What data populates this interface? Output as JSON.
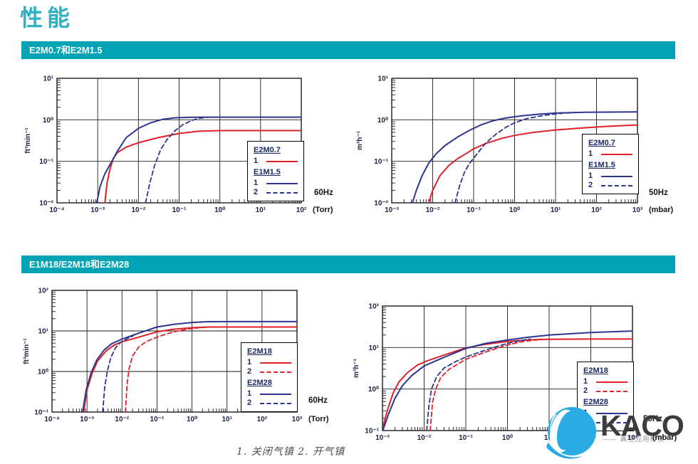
{
  "page": {
    "title": "性能",
    "title_color": "#31b0c3",
    "background": "#ffffff"
  },
  "sections": [
    {
      "banner": "E2M0.7和E2M1.5",
      "banner_bg": "#00a4b4"
    },
    {
      "banner": "E1M18/E2M18和E2M28",
      "banner_bg": "#00a4b4"
    }
  ],
  "footer": {
    "caption": "1. 关闭气镇    2. 开气镇"
  },
  "logo": {
    "text": "KACO",
    "tagline": "—— 真空应用科技",
    "icon": "kaco-sphere-icon",
    "icon_color": "#2aabe3",
    "text_color": "#3c3c3e"
  },
  "colors": {
    "red": "#e02128",
    "blue": "#2c3590",
    "grid": "#1a1a1a",
    "tick_text": "#1b2142"
  },
  "chart_data": [
    {
      "id": "c1",
      "type": "line",
      "section": 0,
      "freq": "60Hz",
      "x_unit": "(Torr)",
      "ylabel": "ft³min⁻¹",
      "xlog": [
        -4,
        2
      ],
      "ylog": [
        -2,
        1
      ],
      "xticks": [
        "10⁻⁴",
        "10⁻³",
        "10⁻²",
        "10⁻¹",
        "10⁰",
        "10¹",
        "10²"
      ],
      "yticks": [
        "10¹",
        "10⁰",
        "10⁻¹",
        "10⁻²"
      ],
      "legend": [
        {
          "title": "E2M0.7",
          "entries": [
            {
              "label": "1",
              "color": "red",
              "dash": false
            }
          ]
        },
        {
          "title": "E1M1.5",
          "entries": [
            {
              "label": "1",
              "color": "blue",
              "dash": false
            },
            {
              "label": "2",
              "color": "blue",
              "dash": true
            }
          ]
        }
      ],
      "series": [
        {
          "name": "E2M0.7 (1)",
          "color": "red",
          "dash": false,
          "points": [
            [
              0.0015,
              0.01
            ],
            [
              0.0017,
              0.03
            ],
            [
              0.002,
              0.065
            ],
            [
              0.0024,
              0.115
            ],
            [
              0.003,
              0.16
            ],
            [
              0.005,
              0.22
            ],
            [
              0.01,
              0.28
            ],
            [
              0.03,
              0.37
            ],
            [
              0.1,
              0.47
            ],
            [
              0.3,
              0.53
            ],
            [
              1,
              0.55
            ],
            [
              100,
              0.55
            ]
          ]
        },
        {
          "name": "E1M1.5 (1)",
          "color": "blue",
          "dash": false,
          "points": [
            [
              0.00095,
              0.01
            ],
            [
              0.00115,
              0.025
            ],
            [
              0.0015,
              0.05
            ],
            [
              0.0023,
              0.105
            ],
            [
              0.003,
              0.17
            ],
            [
              0.005,
              0.37
            ],
            [
              0.01,
              0.62
            ],
            [
              0.02,
              0.85
            ],
            [
              0.04,
              1.03
            ],
            [
              0.08,
              1.12
            ],
            [
              0.2,
              1.15
            ],
            [
              1,
              1.16
            ],
            [
              100,
              1.16
            ]
          ]
        },
        {
          "name": "E1M1.5 (2)",
          "color": "blue",
          "dash": true,
          "points": [
            [
              0.015,
              0.01
            ],
            [
              0.019,
              0.03
            ],
            [
              0.025,
              0.08
            ],
            [
              0.035,
              0.19
            ],
            [
              0.05,
              0.33
            ],
            [
              0.08,
              0.55
            ],
            [
              0.12,
              0.75
            ],
            [
              0.2,
              0.96
            ],
            [
              0.3,
              1.08
            ],
            [
              0.45,
              1.14
            ],
            [
              0.6,
              1.16
            ]
          ]
        }
      ]
    },
    {
      "id": "c2",
      "type": "line",
      "section": 0,
      "freq": "50Hz",
      "x_unit": "(mbar)",
      "ylabel": "m³h⁻¹",
      "xlog": [
        -3,
        3
      ],
      "ylog": [
        -2,
        1
      ],
      "xticks": [
        "10⁻³",
        "10⁻²",
        "10⁻¹",
        "10⁰",
        "10¹",
        "10²",
        "10³"
      ],
      "yticks": [
        "10¹",
        "10⁰",
        "10⁻¹",
        "10⁻²"
      ],
      "legend": [
        {
          "title": "E2M0.7",
          "entries": [
            {
              "label": "1",
              "color": "red",
              "dash": false
            }
          ]
        },
        {
          "title": "E1M1.5",
          "entries": [
            {
              "label": "1",
              "color": "blue",
              "dash": false
            },
            {
              "label": "2",
              "color": "blue",
              "dash": true
            }
          ]
        }
      ],
      "series": [
        {
          "name": "E2M0.7 (1)",
          "color": "red",
          "dash": false,
          "points": [
            [
              0.008,
              0.01
            ],
            [
              0.01,
              0.02
            ],
            [
              0.015,
              0.045
            ],
            [
              0.025,
              0.08
            ],
            [
              0.04,
              0.115
            ],
            [
              0.07,
              0.16
            ],
            [
              0.1,
              0.2
            ],
            [
              0.2,
              0.27
            ],
            [
              0.5,
              0.36
            ],
            [
              1,
              0.42
            ],
            [
              3,
              0.5
            ],
            [
              10,
              0.57
            ],
            [
              50,
              0.64
            ],
            [
              200,
              0.7
            ],
            [
              1000,
              0.75
            ]
          ]
        },
        {
          "name": "E1M1.5 (1)",
          "color": "blue",
          "dash": false,
          "points": [
            [
              0.0032,
              0.01
            ],
            [
              0.004,
              0.02
            ],
            [
              0.0055,
              0.045
            ],
            [
              0.008,
              0.09
            ],
            [
              0.012,
              0.15
            ],
            [
              0.02,
              0.24
            ],
            [
              0.04,
              0.38
            ],
            [
              0.08,
              0.56
            ],
            [
              0.15,
              0.75
            ],
            [
              0.3,
              0.95
            ],
            [
              0.6,
              1.1
            ],
            [
              1.5,
              1.25
            ],
            [
              4,
              1.37
            ],
            [
              10,
              1.45
            ],
            [
              50,
              1.52
            ],
            [
              1000,
              1.55
            ]
          ]
        },
        {
          "name": "E1M1.5 (2)",
          "color": "blue",
          "dash": true,
          "points": [
            [
              0.035,
              0.01
            ],
            [
              0.045,
              0.025
            ],
            [
              0.06,
              0.055
            ],
            [
              0.08,
              0.09
            ],
            [
              0.12,
              0.15
            ],
            [
              0.2,
              0.28
            ],
            [
              0.35,
              0.45
            ],
            [
              0.6,
              0.65
            ],
            [
              1,
              0.85
            ],
            [
              2,
              1.07
            ],
            [
              4,
              1.22
            ],
            [
              8,
              1.35
            ],
            [
              15,
              1.44
            ],
            [
              30,
              1.5
            ]
          ]
        }
      ]
    },
    {
      "id": "c3",
      "type": "line",
      "section": 1,
      "freq": "60Hz",
      "x_unit": "(Torr)",
      "ylabel": "ft³min⁻¹",
      "xlog": [
        -4,
        3
      ],
      "ylog": [
        -1,
        2
      ],
      "xticks": [
        "10⁻⁴",
        "10⁻³",
        "10⁻²",
        "10⁻¹",
        "10⁰",
        "10¹",
        "10²",
        "10³"
      ],
      "yticks": [
        "10²",
        "10¹",
        "10⁰",
        "10⁻¹"
      ],
      "legend": [
        {
          "title": "E2M18",
          "entries": [
            {
              "label": "1",
              "color": "red",
              "dash": false
            },
            {
              "label": "2",
              "color": "red",
              "dash": true
            }
          ]
        },
        {
          "title": "E2M28",
          "entries": [
            {
              "label": "1",
              "color": "blue",
              "dash": false
            },
            {
              "label": "2",
              "color": "blue",
              "dash": true
            }
          ]
        }
      ],
      "series": [
        {
          "name": "E2M18 (1)",
          "color": "red",
          "dash": false,
          "points": [
            [
              0.0008,
              0.1
            ],
            [
              0.001,
              0.35
            ],
            [
              0.0014,
              0.9
            ],
            [
              0.002,
              1.8
            ],
            [
              0.0035,
              3.2
            ],
            [
              0.006,
              4.5
            ],
            [
              0.01,
              5.4
            ],
            [
              0.03,
              7
            ],
            [
              0.1,
              9.5
            ],
            [
              0.3,
              11
            ],
            [
              1,
              12
            ],
            [
              3,
              12.5
            ],
            [
              1000,
              12.5
            ]
          ]
        },
        {
          "name": "E2M18 (2)",
          "color": "red",
          "dash": true,
          "points": [
            [
              0.0125,
              0.1
            ],
            [
              0.014,
              0.5
            ],
            [
              0.016,
              1.2
            ],
            [
              0.02,
              2.4
            ],
            [
              0.03,
              4
            ],
            [
              0.05,
              5.5
            ],
            [
              0.1,
              7
            ],
            [
              0.2,
              8.6
            ],
            [
              0.4,
              10
            ],
            [
              0.8,
              11.2
            ],
            [
              1.5,
              11.9
            ],
            [
              2.5,
              12.3
            ]
          ]
        },
        {
          "name": "E2M28 (1)",
          "color": "blue",
          "dash": false,
          "points": [
            [
              0.00075,
              0.1
            ],
            [
              0.00095,
              0.35
            ],
            [
              0.0013,
              0.9
            ],
            [
              0.0019,
              1.9
            ],
            [
              0.003,
              3.3
            ],
            [
              0.005,
              4.8
            ],
            [
              0.01,
              6.3
            ],
            [
              0.03,
              8.8
            ],
            [
              0.1,
              12.5
            ],
            [
              0.3,
              14.5
            ],
            [
              1,
              16.2
            ],
            [
              3,
              16.9
            ],
            [
              10,
              17
            ],
            [
              1000,
              17
            ]
          ]
        },
        {
          "name": "E2M28 (2)",
          "color": "blue",
          "dash": true,
          "points": [
            [
              0.0028,
              0.1
            ],
            [
              0.0032,
              0.4
            ],
            [
              0.0038,
              1.0
            ],
            [
              0.0048,
              2.2
            ],
            [
              0.0065,
              3.8
            ],
            [
              0.009,
              5.2
            ],
            [
              0.014,
              6.4
            ],
            [
              0.022,
              7.8
            ]
          ]
        }
      ]
    },
    {
      "id": "c4",
      "type": "line",
      "section": 1,
      "freq": "50Hz",
      "x_unit": "(mbar)",
      "ylabel": "m³h⁻¹",
      "xlog": [
        -3,
        3
      ],
      "ylog": [
        -1,
        2
      ],
      "xticks": [
        "10⁻³",
        "10⁻²",
        "10⁻¹",
        "10⁰",
        "10¹",
        "10²",
        "10³"
      ],
      "yticks": [
        "10²",
        "10¹",
        "10⁰",
        "10⁻¹"
      ],
      "legend": [
        {
          "title": "E2M18",
          "entries": [
            {
              "label": "1",
              "color": "red",
              "dash": false
            },
            {
              "label": "2",
              "color": "red",
              "dash": true
            }
          ]
        },
        {
          "title": "E2M28",
          "entries": [
            {
              "label": "1",
              "color": "blue",
              "dash": false
            },
            {
              "label": "2",
              "color": "blue",
              "dash": true
            }
          ]
        }
      ],
      "series": [
        {
          "name": "E2M18 (1)",
          "color": "red",
          "dash": false,
          "points": [
            [
              0.001,
              0.11
            ],
            [
              0.0013,
              0.3
            ],
            [
              0.0018,
              0.8
            ],
            [
              0.0025,
              1.5
            ],
            [
              0.004,
              2.5
            ],
            [
              0.007,
              3.8
            ],
            [
              0.012,
              4.8
            ],
            [
              0.03,
              6.6
            ],
            [
              0.1,
              9.8
            ],
            [
              0.3,
              12
            ],
            [
              1,
              14
            ],
            [
              3,
              15.3
            ],
            [
              10,
              15.8
            ],
            [
              100,
              16
            ],
            [
              1000,
              16
            ]
          ]
        },
        {
          "name": "E2M18 (2)",
          "color": "red",
          "dash": true,
          "points": [
            [
              0.014,
              0.1
            ],
            [
              0.016,
              0.5
            ],
            [
              0.019,
              1.0
            ],
            [
              0.025,
              1.9
            ],
            [
              0.04,
              3.0
            ],
            [
              0.07,
              4.2
            ],
            [
              0.1,
              5.2
            ],
            [
              0.3,
              7.8
            ],
            [
              0.6,
              9.8
            ],
            [
              1,
              11.5
            ],
            [
              2,
              13.5
            ],
            [
              4,
              15
            ],
            [
              7,
              15.6
            ]
          ]
        },
        {
          "name": "E2M28 (1)",
          "color": "blue",
          "dash": false,
          "points": [
            [
              0.001,
              0.095
            ],
            [
              0.0014,
              0.25
            ],
            [
              0.002,
              0.6
            ],
            [
              0.003,
              1.2
            ],
            [
              0.005,
              2.1
            ],
            [
              0.01,
              3.6
            ],
            [
              0.03,
              5.8
            ],
            [
              0.1,
              9.5
            ],
            [
              0.3,
              12.6
            ],
            [
              1,
              15.2
            ],
            [
              3,
              17.6
            ],
            [
              10,
              20
            ],
            [
              100,
              23
            ],
            [
              1000,
              25
            ]
          ]
        },
        {
          "name": "E2M28 (2)",
          "color": "blue",
          "dash": true,
          "points": [
            [
              0.0115,
              0.1
            ],
            [
              0.013,
              0.4
            ],
            [
              0.015,
              1.0
            ],
            [
              0.02,
              2.0
            ],
            [
              0.03,
              3.2
            ],
            [
              0.06,
              4.7
            ],
            [
              0.1,
              5.9
            ],
            [
              0.3,
              8.7
            ],
            [
              0.6,
              10.8
            ],
            [
              1,
              12.6
            ],
            [
              2,
              14.6
            ],
            [
              3.5,
              16
            ]
          ]
        }
      ]
    }
  ]
}
